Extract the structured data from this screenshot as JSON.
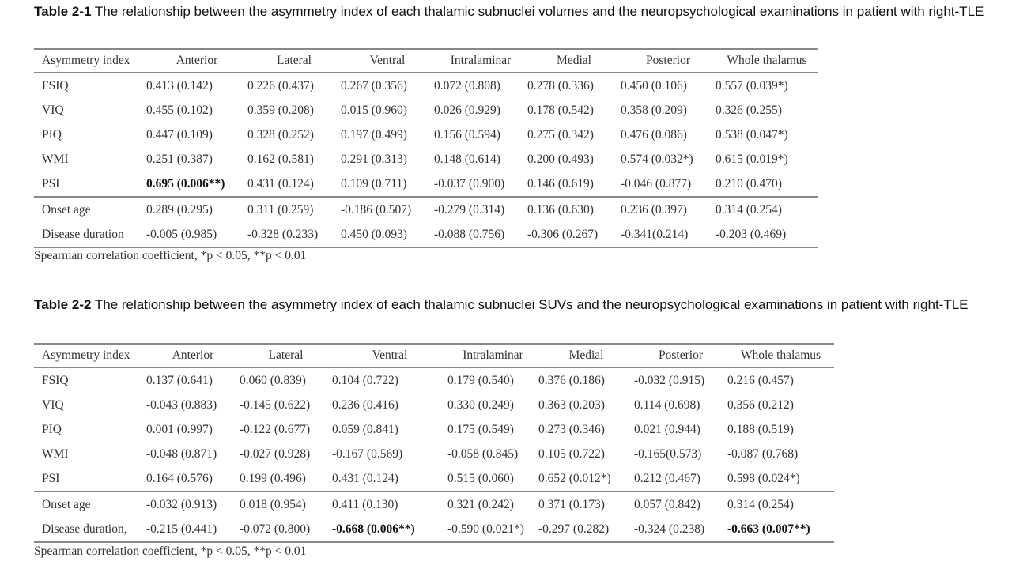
{
  "tables": [
    {
      "label": "Table 2-1",
      "caption": "The relationship between the asymmetry index of each thalamic subnuclei volumes and the neuropsychological examinations in patient with right-TLE",
      "headers": [
        "Asymmetry index",
        "Anterior",
        "Lateral",
        "Ventral",
        "Intralaminar",
        "Medial",
        "Posterior",
        "Whole thalamus"
      ],
      "rows": [
        {
          "label": "FSIQ",
          "values": [
            "0.413 (0.142)",
            "0.226 (0.437)",
            "0.267 (0.356)",
            "0.072 (0.808)",
            "0.278 (0.336)",
            "0.450 (0.106)",
            "0.557 (0.039*)"
          ],
          "bold": []
        },
        {
          "label": "VIQ",
          "values": [
            "0.455 (0.102)",
            "0.359 (0.208)",
            "0.015 (0.960)",
            "0.026 (0.929)",
            "0.178 (0.542)",
            "0.358 (0.209)",
            "0.326 (0.255)"
          ],
          "bold": []
        },
        {
          "label": "PIQ",
          "values": [
            "0.447 (0.109)",
            "0.328 (0.252)",
            "0.197 (0.499)",
            "0.156 (0.594)",
            "0.275 (0.342)",
            "0.476 (0.086)",
            "0.538 (0.047*)"
          ],
          "bold": []
        },
        {
          "label": "WMI",
          "values": [
            "0.251 (0.387)",
            "0.162 (0.581)",
            "0.291 (0.313)",
            "0.148 (0.614)",
            "0.200 (0.493)",
            "0.574 (0.032*)",
            "0.615 (0.019*)"
          ],
          "bold": []
        },
        {
          "label": "PSI",
          "values": [
            "0.695 (0.006**)",
            "0.431 (0.124)",
            "0.109 (0.711)",
            "-0.037 (0.900)",
            "0.146 (0.619)",
            "-0.046 (0.877)",
            "0.210 (0.470)"
          ],
          "bold": [
            0
          ]
        },
        {
          "label": "Onset age",
          "values": [
            "0.289 (0.295)",
            "0.311 (0.259)",
            "-0.186 (0.507)",
            "-0.279 (0.314)",
            "0.136 (0.630)",
            "0.236 (0.397)",
            "0.314 (0.254)"
          ],
          "bold": []
        },
        {
          "label": "Disease duration",
          "values": [
            "-0.005 (0.985)",
            "-0.328 (0.233)",
            "0.450 (0.093)",
            "-0.088 (0.756)",
            "-0.306 (0.267)",
            "-0.341(0.214)",
            "-0.203 (0.469)"
          ],
          "bold": []
        }
      ],
      "footnote": "Spearman correlation coefficient,   *p < 0.05, **p < 0.01"
    },
    {
      "label": "Table 2-2",
      "caption": "The relationship between the asymmetry index of each thalamic subnuclei SUVs and the neuropsychological examinations in patient with right-TLE",
      "headers": [
        "Asymmetry index",
        "Anterior",
        "Lateral",
        "Ventral",
        "Intralaminar",
        "Medial",
        "Posterior",
        "Whole thalamus"
      ],
      "rows": [
        {
          "label": "FSIQ",
          "values": [
            "0.137 (0.641)",
            "0.060 (0.839)",
            "0.104 (0.722)",
            "0.179 (0.540)",
            "0.376 (0.186)",
            "-0.032 (0.915)",
            "0.216 (0.457)"
          ],
          "bold": []
        },
        {
          "label": "VIQ",
          "values": [
            "-0.043 (0.883)",
            "-0.145 (0.622)",
            "0.236 (0.416)",
            "0.330 (0.249)",
            "0.363 (0.203)",
            "0.114 (0.698)",
            "0.356 (0.212)"
          ],
          "bold": []
        },
        {
          "label": "PIQ",
          "values": [
            "0.001 (0.997)",
            "-0.122 (0.677)",
            "0.059 (0.841)",
            "0.175 (0.549)",
            "0.273 (0.346)",
            "0.021 (0.944)",
            "0.188 (0.519)"
          ],
          "bold": []
        },
        {
          "label": "WMI",
          "values": [
            "-0.048 (0.871)",
            "-0.027 (0.928)",
            "-0.167 (0.569)",
            "-0.058 (0.845)",
            "0.105 (0.722)",
            "-0.165(0.573)",
            "-0.087 (0.768)"
          ],
          "bold": []
        },
        {
          "label": "PSI",
          "values": [
            "0.164 (0.576)",
            "0.199 (0.496)",
            "0.431 (0.124)",
            "0.515 (0.060)",
            "0.652 (0.012*)",
            "0.212 (0.467)",
            "0.598 (0.024*)"
          ],
          "bold": []
        },
        {
          "label": "Onset age",
          "values": [
            "-0.032 (0.913)",
            "0.018 (0.954)",
            "0.411 (0.130)",
            "0.321 (0.242)",
            "0.371 (0.173)",
            "0.057 (0.842)",
            "0.314 (0.254)"
          ],
          "bold": []
        },
        {
          "label": "Disease duration,",
          "values": [
            "-0.215 (0.441)",
            "-0.072 (0.800)",
            "-0.668 (0.006**)",
            "-0.590 (0.021*)",
            "-0.297 (0.282)",
            "-0.324 (0.238)",
            "-0.663 (0.007**)"
          ],
          "bold": [
            2,
            6
          ]
        }
      ],
      "footnote": "Spearman correlation coefficient,   *p < 0.05, **p < 0.01"
    }
  ]
}
